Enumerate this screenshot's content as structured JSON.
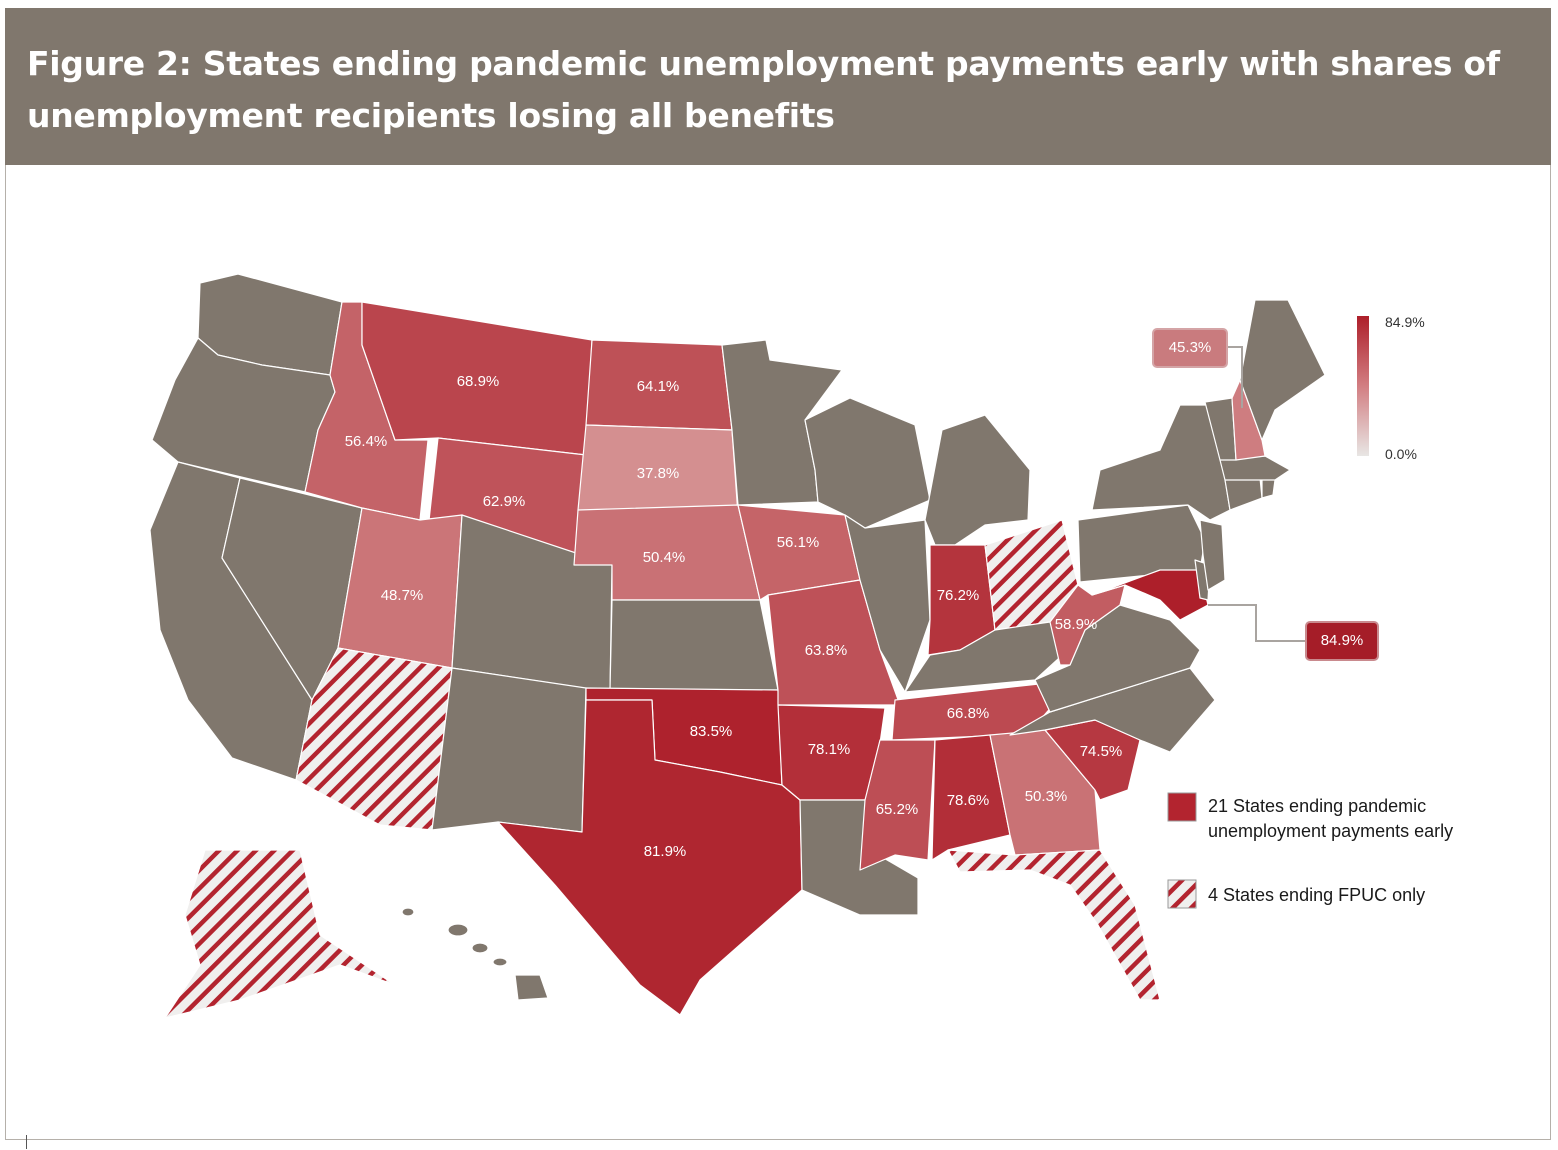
{
  "figure": {
    "title": "Figure 2: States ending pandemic unemployment payments early with shares of unemployment recipients losing all benefits"
  },
  "colors": {
    "header_bg": "#80776d",
    "other_states": "#80776d",
    "ending_early_strong": "#b3242f",
    "ending_early_light": "#d89a9a",
    "fpuc_hatch": "#b3242f"
  },
  "chart_data": {
    "type": "choropleth",
    "value_unit": "%",
    "colorbar": {
      "max_label": "84.9%",
      "min_label": "0.0%",
      "range": [
        0.0,
        84.9
      ]
    },
    "states_ending_pandemic_payments_early": [
      {
        "state": "Montana",
        "label": "68.9%",
        "value": 68.9
      },
      {
        "state": "North Dakota",
        "label": "64.1%",
        "value": 64.1
      },
      {
        "state": "Idaho",
        "label": "56.4%",
        "value": 56.4
      },
      {
        "state": "South Dakota",
        "label": "37.8%",
        "value": 37.8
      },
      {
        "state": "Wyoming",
        "label": "62.9%",
        "value": 62.9
      },
      {
        "state": "Nebraska",
        "label": "50.4%",
        "value": 50.4
      },
      {
        "state": "Iowa",
        "label": "56.1%",
        "value": 56.1
      },
      {
        "state": "Utah",
        "label": "48.7%",
        "value": 48.7
      },
      {
        "state": "Missouri",
        "label": "63.8%",
        "value": 63.8
      },
      {
        "state": "Indiana",
        "label": "76.2%",
        "value": 76.2
      },
      {
        "state": "West Virginia",
        "label": "58.9%",
        "value": 58.9
      },
      {
        "state": "Oklahoma",
        "label": "83.5%",
        "value": 83.5
      },
      {
        "state": "Arkansas",
        "label": "78.1%",
        "value": 78.1
      },
      {
        "state": "Tennessee",
        "label": "66.8%",
        "value": 66.8
      },
      {
        "state": "South Carolina",
        "label": "74.5%",
        "value": 74.5
      },
      {
        "state": "Mississippi",
        "label": "65.2%",
        "value": 65.2
      },
      {
        "state": "Alabama",
        "label": "78.6%",
        "value": 78.6
      },
      {
        "state": "Georgia",
        "label": "50.3%",
        "value": 50.3
      },
      {
        "state": "Texas",
        "label": "81.9%",
        "value": 81.9
      },
      {
        "state": "New Hampshire",
        "label": "45.3%",
        "value": 45.3
      },
      {
        "state": "Maryland",
        "label": "84.9%",
        "value": 84.9
      }
    ],
    "states_ending_fpuc_only": [
      "Arizona",
      "Ohio",
      "Florida",
      "Alaska"
    ]
  },
  "legend": {
    "solid": "21 States ending pandemic unemployment payments early",
    "solid_line1": "21 States ending pandemic",
    "solid_line2": "unemployment payments early",
    "hatched": "4 States ending FPUC only"
  }
}
